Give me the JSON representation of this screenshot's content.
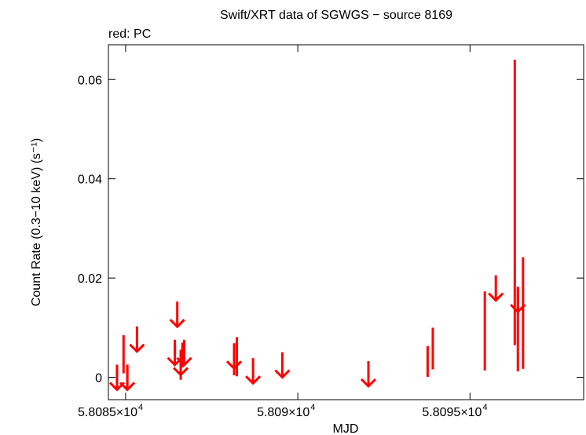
{
  "chart_data": {
    "type": "scatter",
    "title": "Swift/XRT data of SGWGS − source 8169",
    "subtitle": "red: PC",
    "xlabel": "MJD",
    "ylabel": "Count Rate (0.3−10 keV) (s⁻¹)",
    "xlim": [
      58084.5,
      58098.3
    ],
    "ylim": [
      -0.0045,
      0.067
    ],
    "grid": false,
    "x_ticks": [
      {
        "value": 58085,
        "mantissa": "5.8085",
        "times": "×10",
        "exp": "4"
      },
      {
        "value": 58090,
        "mantissa": "5.809",
        "times": "×10",
        "exp": "4"
      },
      {
        "value": 58095,
        "mantissa": "5.8095",
        "times": "×10",
        "exp": "4"
      }
    ],
    "y_ticks": [
      {
        "value": 0,
        "label": "0"
      },
      {
        "value": 0.02,
        "label": "0.02"
      },
      {
        "value": 0.04,
        "label": "0.04"
      },
      {
        "value": 0.06,
        "label": "0.06"
      }
    ],
    "series": [
      {
        "color": "#ff0000",
        "error_bars": [
          {
            "x": 58084.75,
            "ylo": -0.0025,
            "yhi": 0.0018
          },
          {
            "x": 58084.94,
            "ylo": 0.0008,
            "yhi": 0.0085
          },
          {
            "x": 58085.05,
            "ylo": -0.0025,
            "yhi": 0.0024
          },
          {
            "x": 58086.43,
            "ylo": 0.0045,
            "yhi": 0.0064
          },
          {
            "x": 58086.6,
            "ylo": -0.0005,
            "yhi": 0.0048
          },
          {
            "x": 58086.65,
            "ylo": 0.002,
            "yhi": 0.007
          },
          {
            "x": 58088.15,
            "ylo": 0.0004,
            "yhi": 0.0058
          },
          {
            "x": 58088.23,
            "ylo": 0.0002,
            "yhi": 0.0081
          },
          {
            "x": 58093.77,
            "ylo": 0.0001,
            "yhi": 0.0063
          },
          {
            "x": 58093.92,
            "ylo": 0.0016,
            "yhi": 0.01
          },
          {
            "x": 58095.43,
            "ylo": 0.0014,
            "yhi": 0.0173
          },
          {
            "x": 58096.3,
            "ylo": 0.0065,
            "yhi": 0.064
          },
          {
            "x": 58096.39,
            "ylo": 0.0012,
            "yhi": 0.0178
          },
          {
            "x": 58096.54,
            "ylo": 0.0017,
            "yhi": 0.0242
          }
        ],
        "upper_limits": [
          {
            "x": 58084.75,
            "y": -0.0025
          },
          {
            "x": 58085.05,
            "y": -0.0025
          },
          {
            "x": 58085.33,
            "y": 0.0052
          },
          {
            "x": 58086.43,
            "y": 0.0025
          },
          {
            "x": 58086.5,
            "y": 0.0102
          },
          {
            "x": 58086.6,
            "y": 0.0005
          },
          {
            "x": 58086.7,
            "y": 0.0025
          },
          {
            "x": 58088.15,
            "y": 0.0018
          },
          {
            "x": 58088.7,
            "y": -0.0012
          },
          {
            "x": 58089.55,
            "y": 0.0
          },
          {
            "x": 58092.05,
            "y": -0.0018
          },
          {
            "x": 58095.75,
            "y": 0.0155
          },
          {
            "x": 58096.39,
            "y": 0.0132
          }
        ]
      }
    ]
  }
}
